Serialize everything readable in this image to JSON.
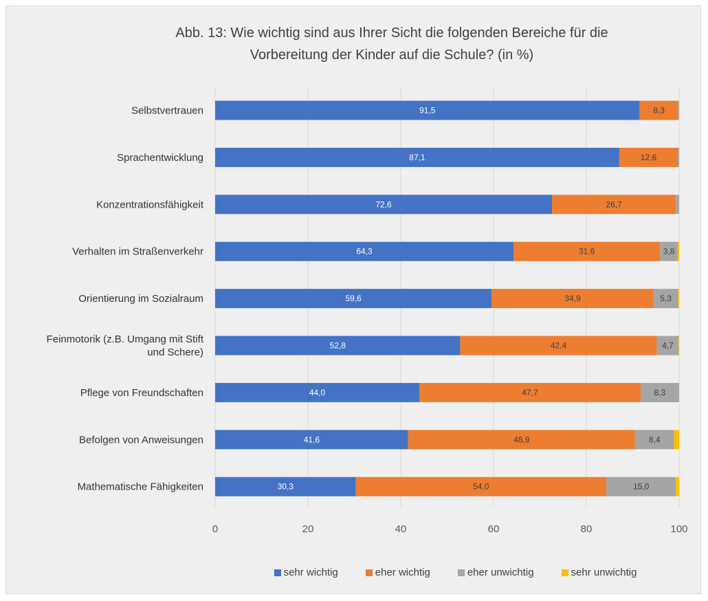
{
  "chart_data": {
    "type": "bar",
    "orientation": "horizontal",
    "stacked": true,
    "title_lines": [
      "Abb. 13: Wie wichtig sind aus Ihrer Sicht die folgenden Bereiche für die",
      "Vorbereitung der Kinder auf die Schule? (in %)"
    ],
    "categories": [
      [
        "Selbstvertrauen"
      ],
      [
        "Sprachentwicklung"
      ],
      [
        "Konzentrationsfähigkeit"
      ],
      [
        "Verhalten im Straßenverkehr"
      ],
      [
        "Orientierung im Sozialraum"
      ],
      [
        "Feinmotorik (z.B. Umgang mit Stift",
        "und Schere)"
      ],
      [
        "Pflege von Freundschaften"
      ],
      [
        "Befolgen von Anweisungen"
      ],
      [
        "Mathematische Fähigkeiten"
      ]
    ],
    "series": [
      {
        "name": "sehr wichtig",
        "color": "#4472c4",
        "label_color": "#ffffff",
        "values": [
          91.5,
          87.1,
          72.6,
          64.3,
          59.6,
          52.8,
          44.0,
          41.6,
          30.3
        ],
        "labels": [
          "91,5",
          "87,1",
          "72,6",
          "64,3",
          "59,6",
          "52,8",
          "44,0",
          "41,6",
          "30,3"
        ]
      },
      {
        "name": "eher wichtig",
        "color": "#ed7d31",
        "label_color": "#404040",
        "values": [
          8.3,
          12.6,
          26.7,
          31.6,
          34.9,
          42.4,
          47.7,
          48.9,
          54.0
        ],
        "labels": [
          "8,3",
          "12,6",
          "26,7",
          "31,6",
          "34,9",
          "42,4",
          "47,7",
          "48,9",
          "54,0"
        ]
      },
      {
        "name": "eher unwichtig",
        "color": "#a5a5a5",
        "label_color": "#404040",
        "values": [
          0.2,
          0.3,
          0.7,
          3.8,
          5.3,
          4.7,
          8.3,
          8.4,
          15.0
        ],
        "labels": [
          "",
          "",
          "",
          "3,8",
          "5,3",
          "4,7",
          "8,3",
          "8,4",
          "15,0"
        ]
      },
      {
        "name": "sehr unwichtig",
        "color": "#ffc000",
        "label_color": "#404040",
        "values": [
          0.0,
          0.0,
          0.0,
          0.3,
          0.2,
          0.1,
          0.0,
          1.1,
          0.7
        ],
        "labels": [
          "",
          "",
          "",
          "",
          "",
          "",
          "",
          "",
          ""
        ]
      }
    ],
    "xlim": [
      0,
      100
    ],
    "xticks": [
      0,
      20,
      40,
      60,
      80,
      100
    ],
    "xtick_labels": [
      "0",
      "20",
      "40",
      "60",
      "80",
      "100"
    ],
    "legend_position": "bottom",
    "grid": "vertical"
  }
}
